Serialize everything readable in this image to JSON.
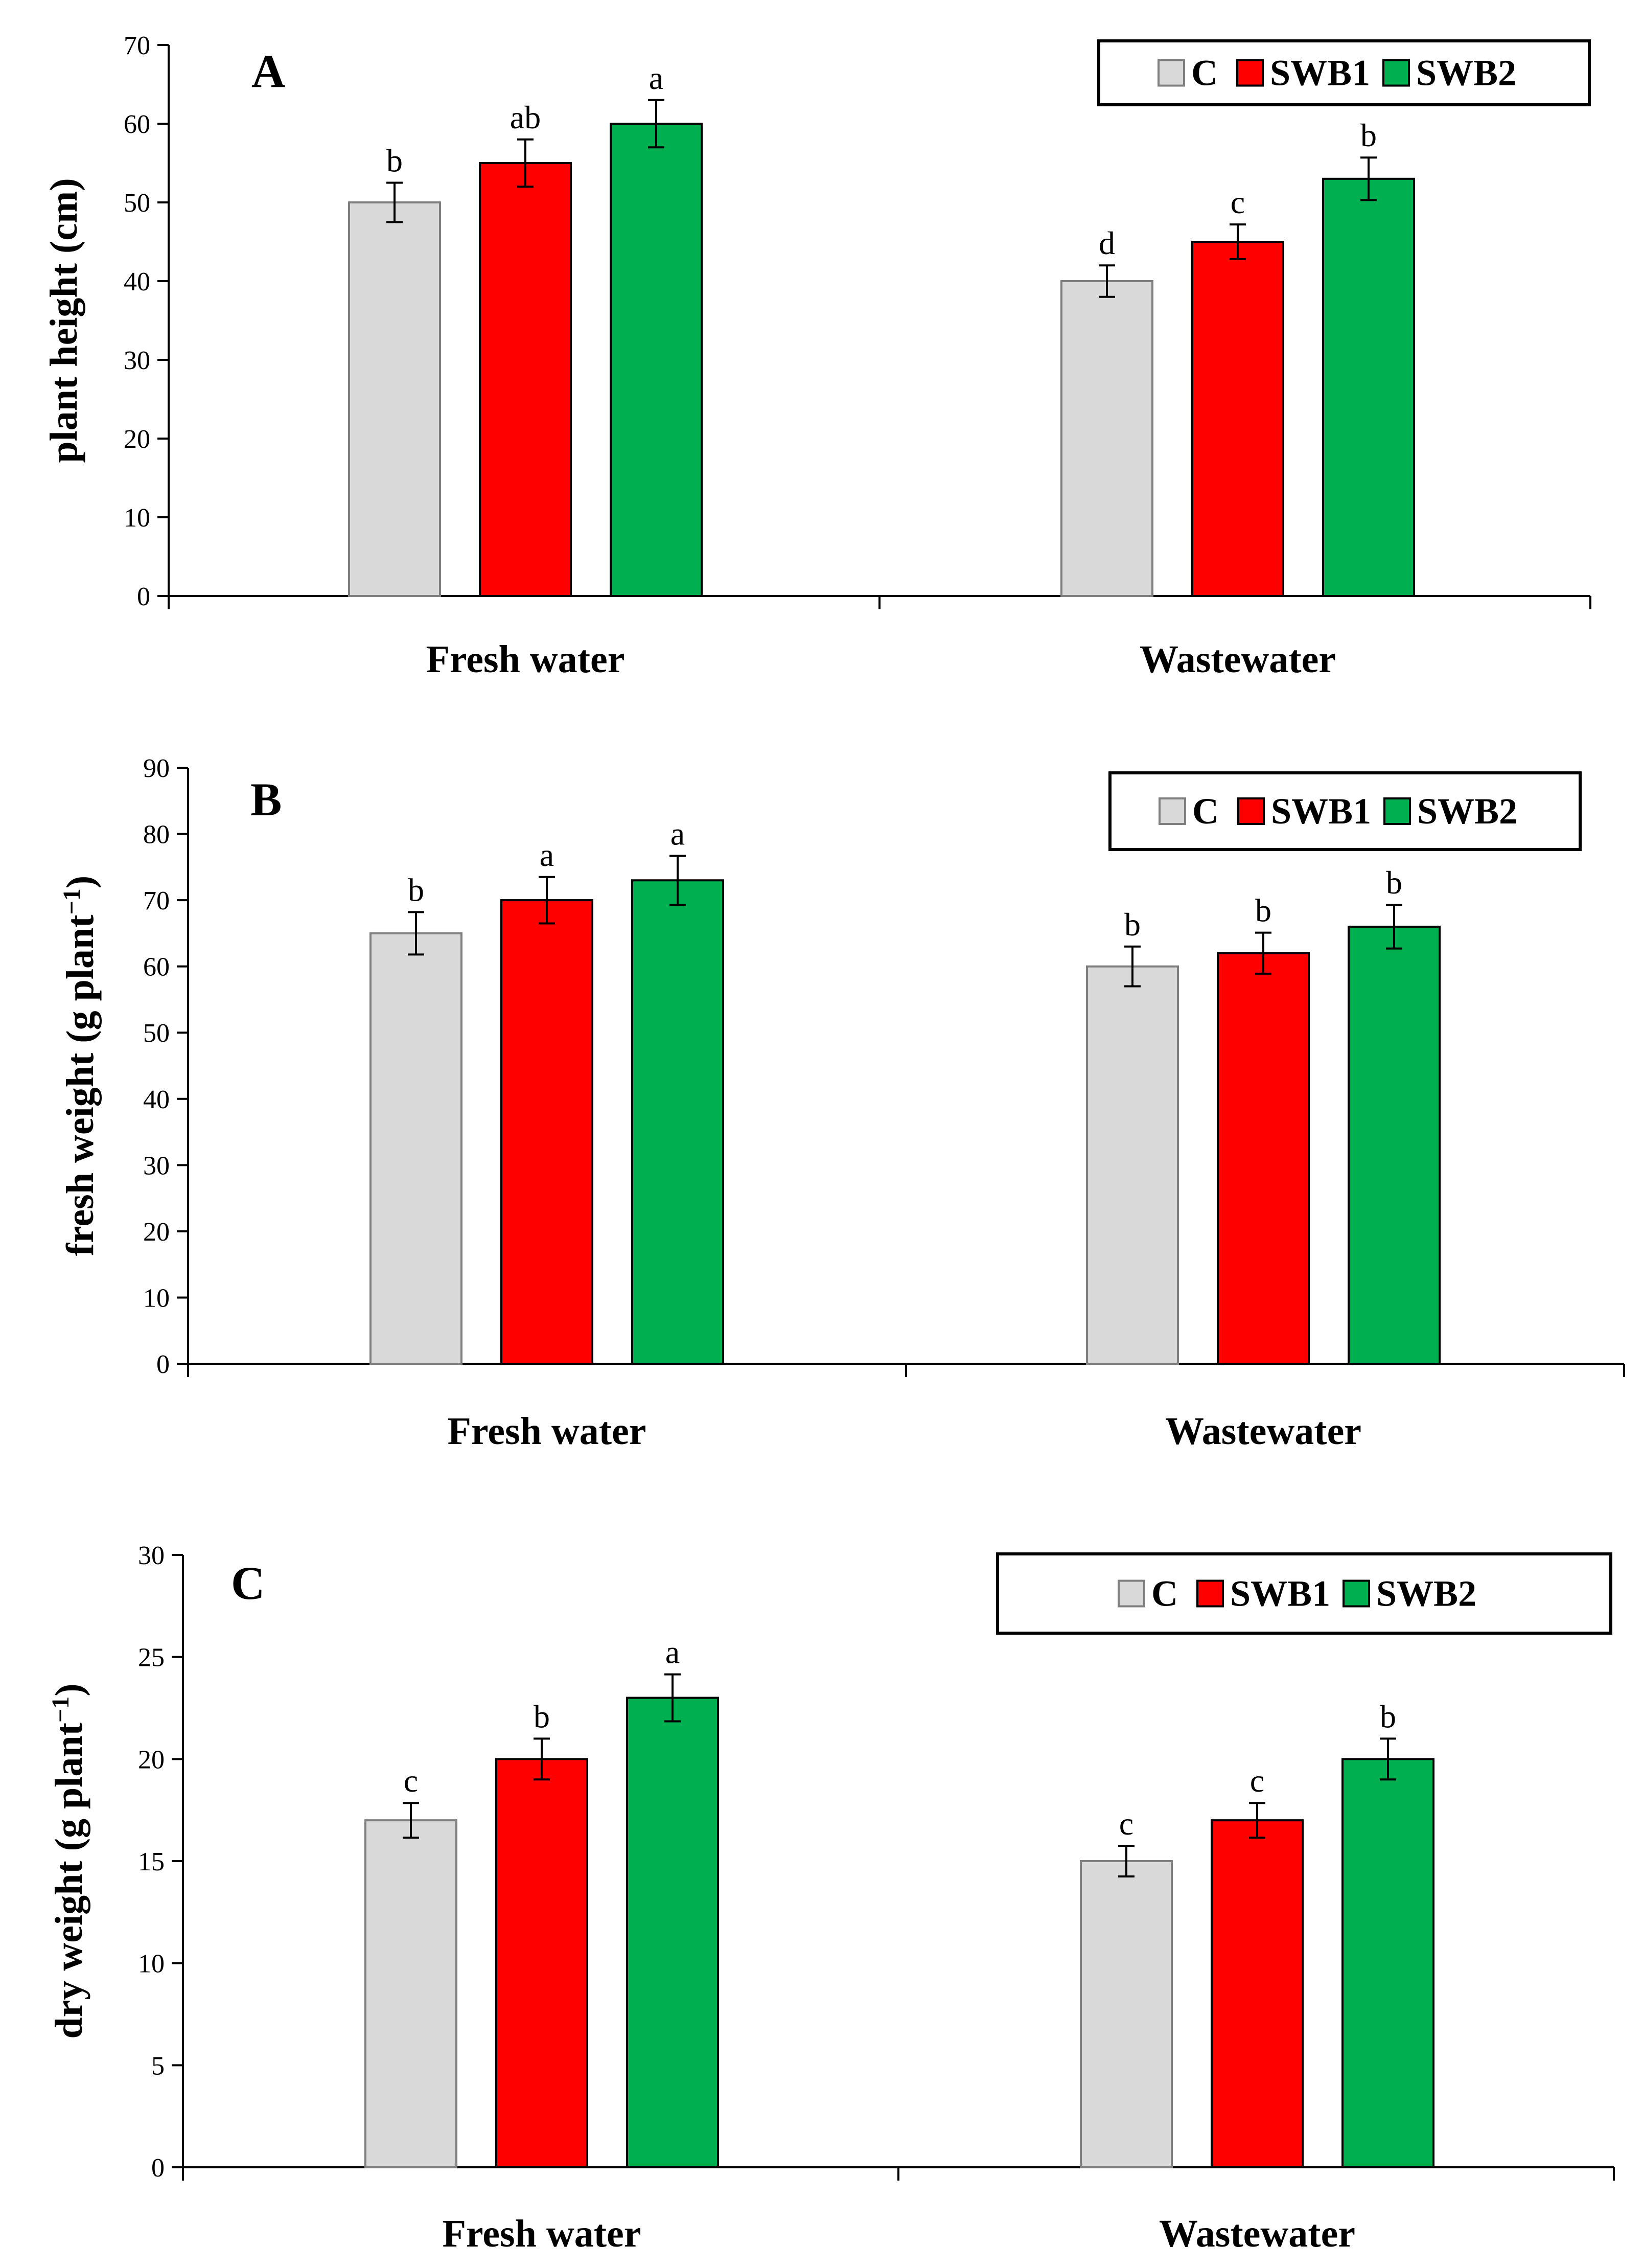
{
  "chart_data": [
    {
      "type": "bar",
      "panel_label": "A",
      "categories": [
        "Fresh water",
        "Wastewater"
      ],
      "ylabel": "plant height (cm)",
      "ylabel_unit": "",
      "ylim": [
        0,
        70
      ],
      "yticks": [
        "0",
        "10",
        "20",
        "30",
        "40",
        "50",
        "60",
        "70"
      ],
      "legend_position": "top-right",
      "series": [
        {
          "name": "C",
          "color": "#d9d9d9",
          "values": [
            50,
            40
          ],
          "errors": [
            2.5,
            2
          ],
          "letters": [
            "b",
            "d"
          ]
        },
        {
          "name": "SWB1",
          "color": "#ff0000",
          "values": [
            55,
            45
          ],
          "errors": [
            3,
            2.2
          ],
          "letters": [
            "ab",
            "c"
          ]
        },
        {
          "name": "SWB2",
          "color": "#00b050",
          "values": [
            60,
            53
          ],
          "errors": [
            3,
            2.7
          ],
          "letters": [
            "a",
            "b"
          ]
        }
      ]
    },
    {
      "type": "bar",
      "panel_label": "B",
      "categories": [
        "Fresh water",
        "Wastewater"
      ],
      "ylabel": "fresh weight (g plant",
      "ylabel_unit": "−1",
      "ylim": [
        0,
        90
      ],
      "yticks": [
        "0",
        "10",
        "20",
        "30",
        "40",
        "50",
        "60",
        "70",
        "80",
        "90"
      ],
      "legend_position": "top-right",
      "series": [
        {
          "name": "C",
          "color": "#d9d9d9",
          "values": [
            65,
            60
          ],
          "errors": [
            3.2,
            3
          ],
          "letters": [
            "b",
            "b"
          ]
        },
        {
          "name": "SWB1",
          "color": "#ff0000",
          "values": [
            70,
            62
          ],
          "errors": [
            3.5,
            3.1
          ],
          "letters": [
            "a",
            "b"
          ]
        },
        {
          "name": "SWB2",
          "color": "#00b050",
          "values": [
            73,
            66
          ],
          "errors": [
            3.7,
            3.3
          ],
          "letters": [
            "a",
            "b"
          ]
        }
      ]
    },
    {
      "type": "bar",
      "panel_label": "C",
      "categories": [
        "Fresh water",
        "Wastewater"
      ],
      "ylabel": "dry weight (g plant",
      "ylabel_unit": "−1",
      "ylim": [
        0,
        30
      ],
      "yticks": [
        "0",
        "5",
        "10",
        "15",
        "20",
        "25",
        "30"
      ],
      "legend_position": "top-right",
      "series": [
        {
          "name": "C",
          "color": "#d9d9d9",
          "values": [
            17,
            15
          ],
          "errors": [
            0.85,
            0.75
          ],
          "letters": [
            "c",
            "c"
          ]
        },
        {
          "name": "SWB1",
          "color": "#ff0000",
          "values": [
            20,
            17
          ],
          "errors": [
            1,
            0.85
          ],
          "letters": [
            "b",
            "c"
          ]
        },
        {
          "name": "SWB2",
          "color": "#00b050",
          "values": [
            23,
            20
          ],
          "errors": [
            1.15,
            1
          ],
          "letters": [
            "a",
            "b"
          ]
        }
      ]
    }
  ]
}
